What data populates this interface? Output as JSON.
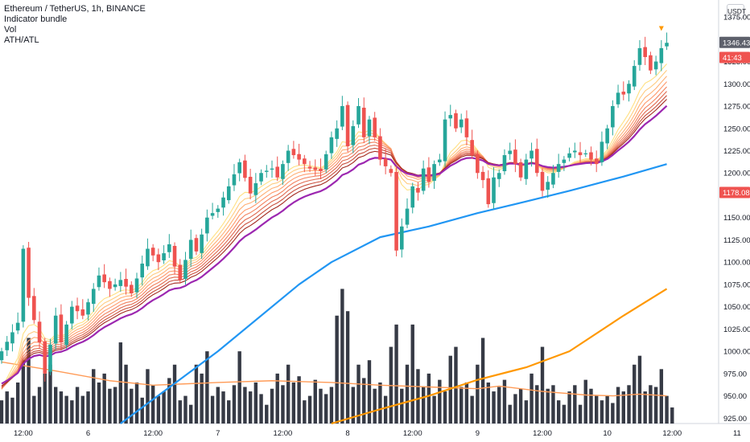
{
  "legend": {
    "title": "Ethereum / TetherUS, 1h, BINANCE",
    "indicator": "Indicator bundle",
    "vol": "Vol",
    "athatl": "ATH/ATL"
  },
  "currency_button": "USDT",
  "price_tags": {
    "last_price": "1346.43",
    "countdown": "41:43",
    "level": "1178.08"
  },
  "colors": {
    "up": "#26a69a",
    "down": "#ef5350",
    "volume": "#363a45",
    "ma_blue": "#2196f3",
    "ma_orange": "#ff9800",
    "vol_ma": "#ff9b57",
    "ribbon_purple": "#9c27b0",
    "tag_dark": "#5d606b",
    "tag_red": "#ef5350"
  },
  "chart_data": {
    "type": "candlestick",
    "y_ticks": [
      925,
      950,
      975,
      1000,
      1025,
      1050,
      1075,
      1100,
      1125,
      1150,
      1175,
      1200,
      1225,
      1250,
      1275,
      1300,
      1325,
      1350,
      1375
    ],
    "y_tick_labels": [
      "925.00",
      "950.00",
      "975.00",
      "1000.00",
      "1025.00",
      "1050.00",
      "1075.00",
      "1100.00",
      "1125.00",
      "1150.00",
      "1175.00",
      "1200.00",
      "1225.00",
      "1250.00",
      "1275.00",
      "1300.00",
      "1325.00",
      "1350.00",
      "1375.00"
    ],
    "ylim": [
      919,
      1394
    ],
    "x_ticks": [
      {
        "hour": 4,
        "label": "12:00"
      },
      {
        "hour": 16,
        "label": "6"
      },
      {
        "hour": 28,
        "label": "12:00"
      },
      {
        "hour": 40,
        "label": "7"
      },
      {
        "hour": 52,
        "label": "12:00"
      },
      {
        "hour": 64,
        "label": "8"
      },
      {
        "hour": 76,
        "label": "12:00"
      },
      {
        "hour": 88,
        "label": "9"
      },
      {
        "hour": 100,
        "label": "12:00"
      },
      {
        "hour": 112,
        "label": "10"
      },
      {
        "hour": 124,
        "label": "12:00"
      },
      {
        "hour": 136,
        "label": "11"
      }
    ],
    "price_keys": [
      [
        0,
        1000
      ],
      [
        3,
        1032
      ],
      [
        4,
        1115
      ],
      [
        5,
        1060
      ],
      [
        7,
        1010
      ],
      [
        8,
        975
      ],
      [
        10,
        1040
      ],
      [
        11,
        1010
      ],
      [
        13,
        1050
      ],
      [
        15,
        1040
      ],
      [
        18,
        1085
      ],
      [
        20,
        1070
      ],
      [
        22,
        1080
      ],
      [
        24,
        1065
      ],
      [
        27,
        1115
      ],
      [
        29,
        1100
      ],
      [
        31,
        1120
      ],
      [
        32,
        1095
      ],
      [
        33,
        1080
      ],
      [
        35,
        1125
      ],
      [
        36,
        1112
      ],
      [
        38,
        1150
      ],
      [
        40,
        1160
      ],
      [
        42,
        1185
      ],
      [
        44,
        1212
      ],
      [
        46,
        1177
      ],
      [
        48,
        1200
      ],
      [
        50,
        1205
      ],
      [
        51,
        1195
      ],
      [
        53,
        1225
      ],
      [
        55,
        1215
      ],
      [
        57,
        1205
      ],
      [
        59,
        1202
      ],
      [
        61,
        1240
      ],
      [
        62,
        1250
      ],
      [
        63,
        1275
      ],
      [
        64,
        1230
      ],
      [
        66,
        1275
      ],
      [
        67,
        1240
      ],
      [
        68,
        1260
      ],
      [
        69,
        1240
      ],
      [
        70,
        1215
      ],
      [
        72,
        1200
      ],
      [
        73,
        1113
      ],
      [
        74,
        1140
      ],
      [
        75,
        1160
      ],
      [
        76,
        1185
      ],
      [
        77,
        1178
      ],
      [
        78,
        1205
      ],
      [
        79,
        1190
      ],
      [
        80,
        1210
      ],
      [
        81,
        1215
      ],
      [
        82,
        1260
      ],
      [
        83,
        1265
      ],
      [
        84,
        1250
      ],
      [
        85,
        1260
      ],
      [
        86,
        1240
      ],
      [
        87,
        1220
      ],
      [
        88,
        1200
      ],
      [
        89,
        1192
      ],
      [
        90,
        1165
      ],
      [
        91,
        1195
      ],
      [
        92,
        1200
      ],
      [
        93,
        1220
      ],
      [
        94,
        1225
      ],
      [
        95,
        1210
      ],
      [
        96,
        1195
      ],
      [
        97,
        1215
      ],
      [
        98,
        1225
      ],
      [
        99,
        1200
      ],
      [
        100,
        1180
      ],
      [
        101,
        1190
      ],
      [
        102,
        1200
      ],
      [
        103,
        1210
      ],
      [
        104,
        1215
      ],
      [
        105,
        1222
      ],
      [
        106,
        1225
      ],
      [
        107,
        1220
      ],
      [
        108,
        1222
      ],
      [
        109,
        1215
      ],
      [
        110,
        1210
      ],
      [
        111,
        1235
      ],
      [
        112,
        1250
      ],
      [
        113,
        1275
      ],
      [
        114,
        1290
      ],
      [
        115,
        1288
      ],
      [
        116,
        1300
      ],
      [
        117,
        1320
      ],
      [
        118,
        1340
      ],
      [
        119,
        1330
      ],
      [
        120,
        1315
      ],
      [
        121,
        1325
      ],
      [
        122,
        1340
      ],
      [
        123,
        1346
      ]
    ],
    "ma_blue": [
      [
        22,
        919
      ],
      [
        40,
        1000
      ],
      [
        55,
        1075
      ],
      [
        61,
        1100
      ],
      [
        70,
        1128
      ],
      [
        79,
        1140
      ],
      [
        88,
        1155
      ],
      [
        97,
        1168
      ],
      [
        105,
        1180
      ],
      [
        115,
        1196
      ],
      [
        123,
        1210
      ]
    ],
    "ma_orange": [
      [
        61,
        919
      ],
      [
        70,
        935
      ],
      [
        79,
        950
      ],
      [
        88,
        968
      ],
      [
        97,
        982
      ],
      [
        105,
        1000
      ],
      [
        115,
        1040
      ],
      [
        123,
        1070
      ]
    ],
    "vol_ma": [
      [
        0,
        988
      ],
      [
        10,
        978
      ],
      [
        20,
        967
      ],
      [
        28,
        962
      ],
      [
        40,
        965
      ],
      [
        50,
        967
      ],
      [
        61,
        965
      ],
      [
        70,
        962
      ],
      [
        79,
        960
      ],
      [
        88,
        958
      ],
      [
        92,
        961
      ],
      [
        100,
        955
      ],
      [
        108,
        951
      ],
      [
        113,
        950
      ],
      [
        118,
        952
      ],
      [
        123,
        950
      ]
    ],
    "volumes": [
      945,
      955,
      948,
      965,
      990,
      1015,
      950,
      960,
      975,
      985,
      960,
      955,
      950,
      945,
      960,
      950,
      955,
      980,
      965,
      975,
      958,
      960,
      1010,
      985,
      958,
      965,
      948,
      980,
      962,
      950,
      955,
      970,
      985,
      945,
      950,
      940,
      985,
      975,
      1000,
      950,
      960,
      955,
      945,
      962,
      1000,
      960,
      955,
      965,
      952,
      940,
      958,
      975,
      962,
      985,
      965,
      972,
      945,
      950,
      968,
      958,
      952,
      960,
      1040,
      1070,
      1045,
      960,
      985,
      970,
      990,
      958,
      965,
      950,
      1005,
      1030,
      958,
      985,
      1030,
      980,
      960,
      975,
      950,
      968,
      955,
      995,
      1005,
      960,
      965,
      950,
      985,
      1015,
      965,
      955,
      960,
      968,
      940,
      952,
      958,
      945,
      975,
      962,
      1005,
      958,
      962,
      945,
      940,
      955,
      962,
      940,
      968,
      958,
      950,
      945,
      950,
      942,
      960,
      955,
      962,
      985,
      995,
      955,
      962,
      960,
      980,
      950,
      937
    ],
    "series": []
  }
}
